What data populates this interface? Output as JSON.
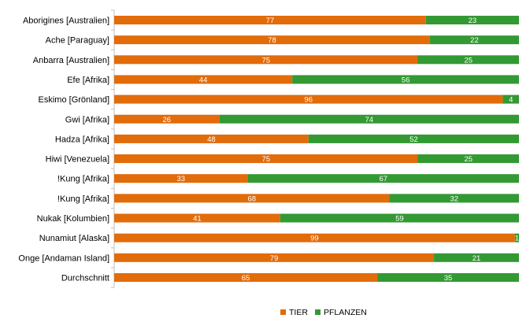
{
  "chart_data": {
    "type": "bar",
    "orientation": "horizontal",
    "stacked": true,
    "categories": [
      "Aborigines [Australien]",
      "Ache [Paraguay]",
      "Anbarra [Australien]",
      "Efe [Afrika]",
      "Eskimo [Grönland]",
      "Gwi [Afrika]",
      "Hadza [Afrika]",
      "Hiwi [Venezuela]",
      "!Kung [Afrika]",
      "!Kung [Afrika]",
      "Nukak [Kolumbien]",
      "Nunamiut [Alaska]",
      "Onge [Andaman Island]",
      "Durchschnitt"
    ],
    "series": [
      {
        "name": "TIER",
        "color": "#E26B0A",
        "values": [
          77,
          78,
          75,
          44,
          96,
          26,
          48,
          75,
          33,
          68,
          41,
          99,
          79,
          65
        ]
      },
      {
        "name": "PFLANZEN",
        "color": "#339933",
        "values": [
          23,
          22,
          25,
          56,
          4,
          74,
          52,
          25,
          67,
          32,
          59,
          1,
          21,
          35
        ]
      }
    ],
    "xlim": [
      0,
      100
    ],
    "grid": false,
    "legend_position": "bottom"
  }
}
